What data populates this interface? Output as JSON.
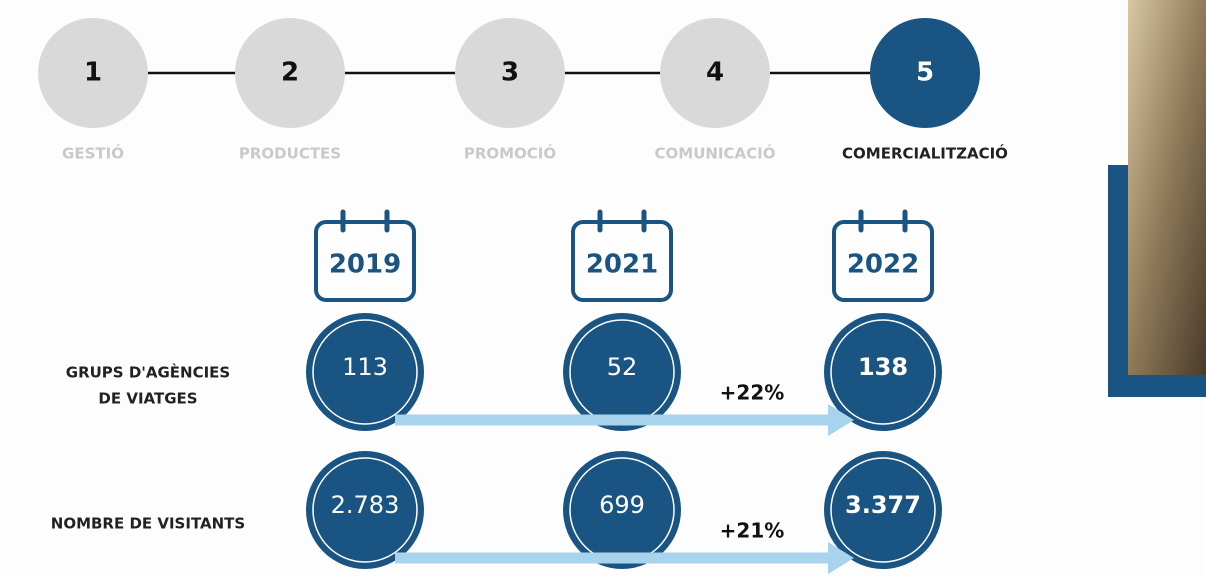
{
  "steps": [
    {
      "number": "1",
      "label": "GESTIÓ"
    },
    {
      "number": "2",
      "label": "PRODUCTES"
    },
    {
      "number": "3",
      "label": "PROMOCIÓ"
    },
    {
      "number": "4",
      "label": "COMUNICACIÓ"
    },
    {
      "number": "5",
      "label": "COMERCIALITZACIÓ"
    }
  ],
  "years": [
    "2019",
    "2021",
    "2022"
  ],
  "rows": [
    {
      "label": [
        "GRUPS D'AGÈNCIES",
        "DE VIATGES"
      ],
      "values": [
        "113",
        "52",
        "138"
      ],
      "change": "+22%"
    },
    {
      "label": [
        "NOMBRE DE VISITANTS"
      ],
      "values": [
        "2.783",
        "699",
        "3.377"
      ],
      "change": "+21%"
    }
  ]
}
